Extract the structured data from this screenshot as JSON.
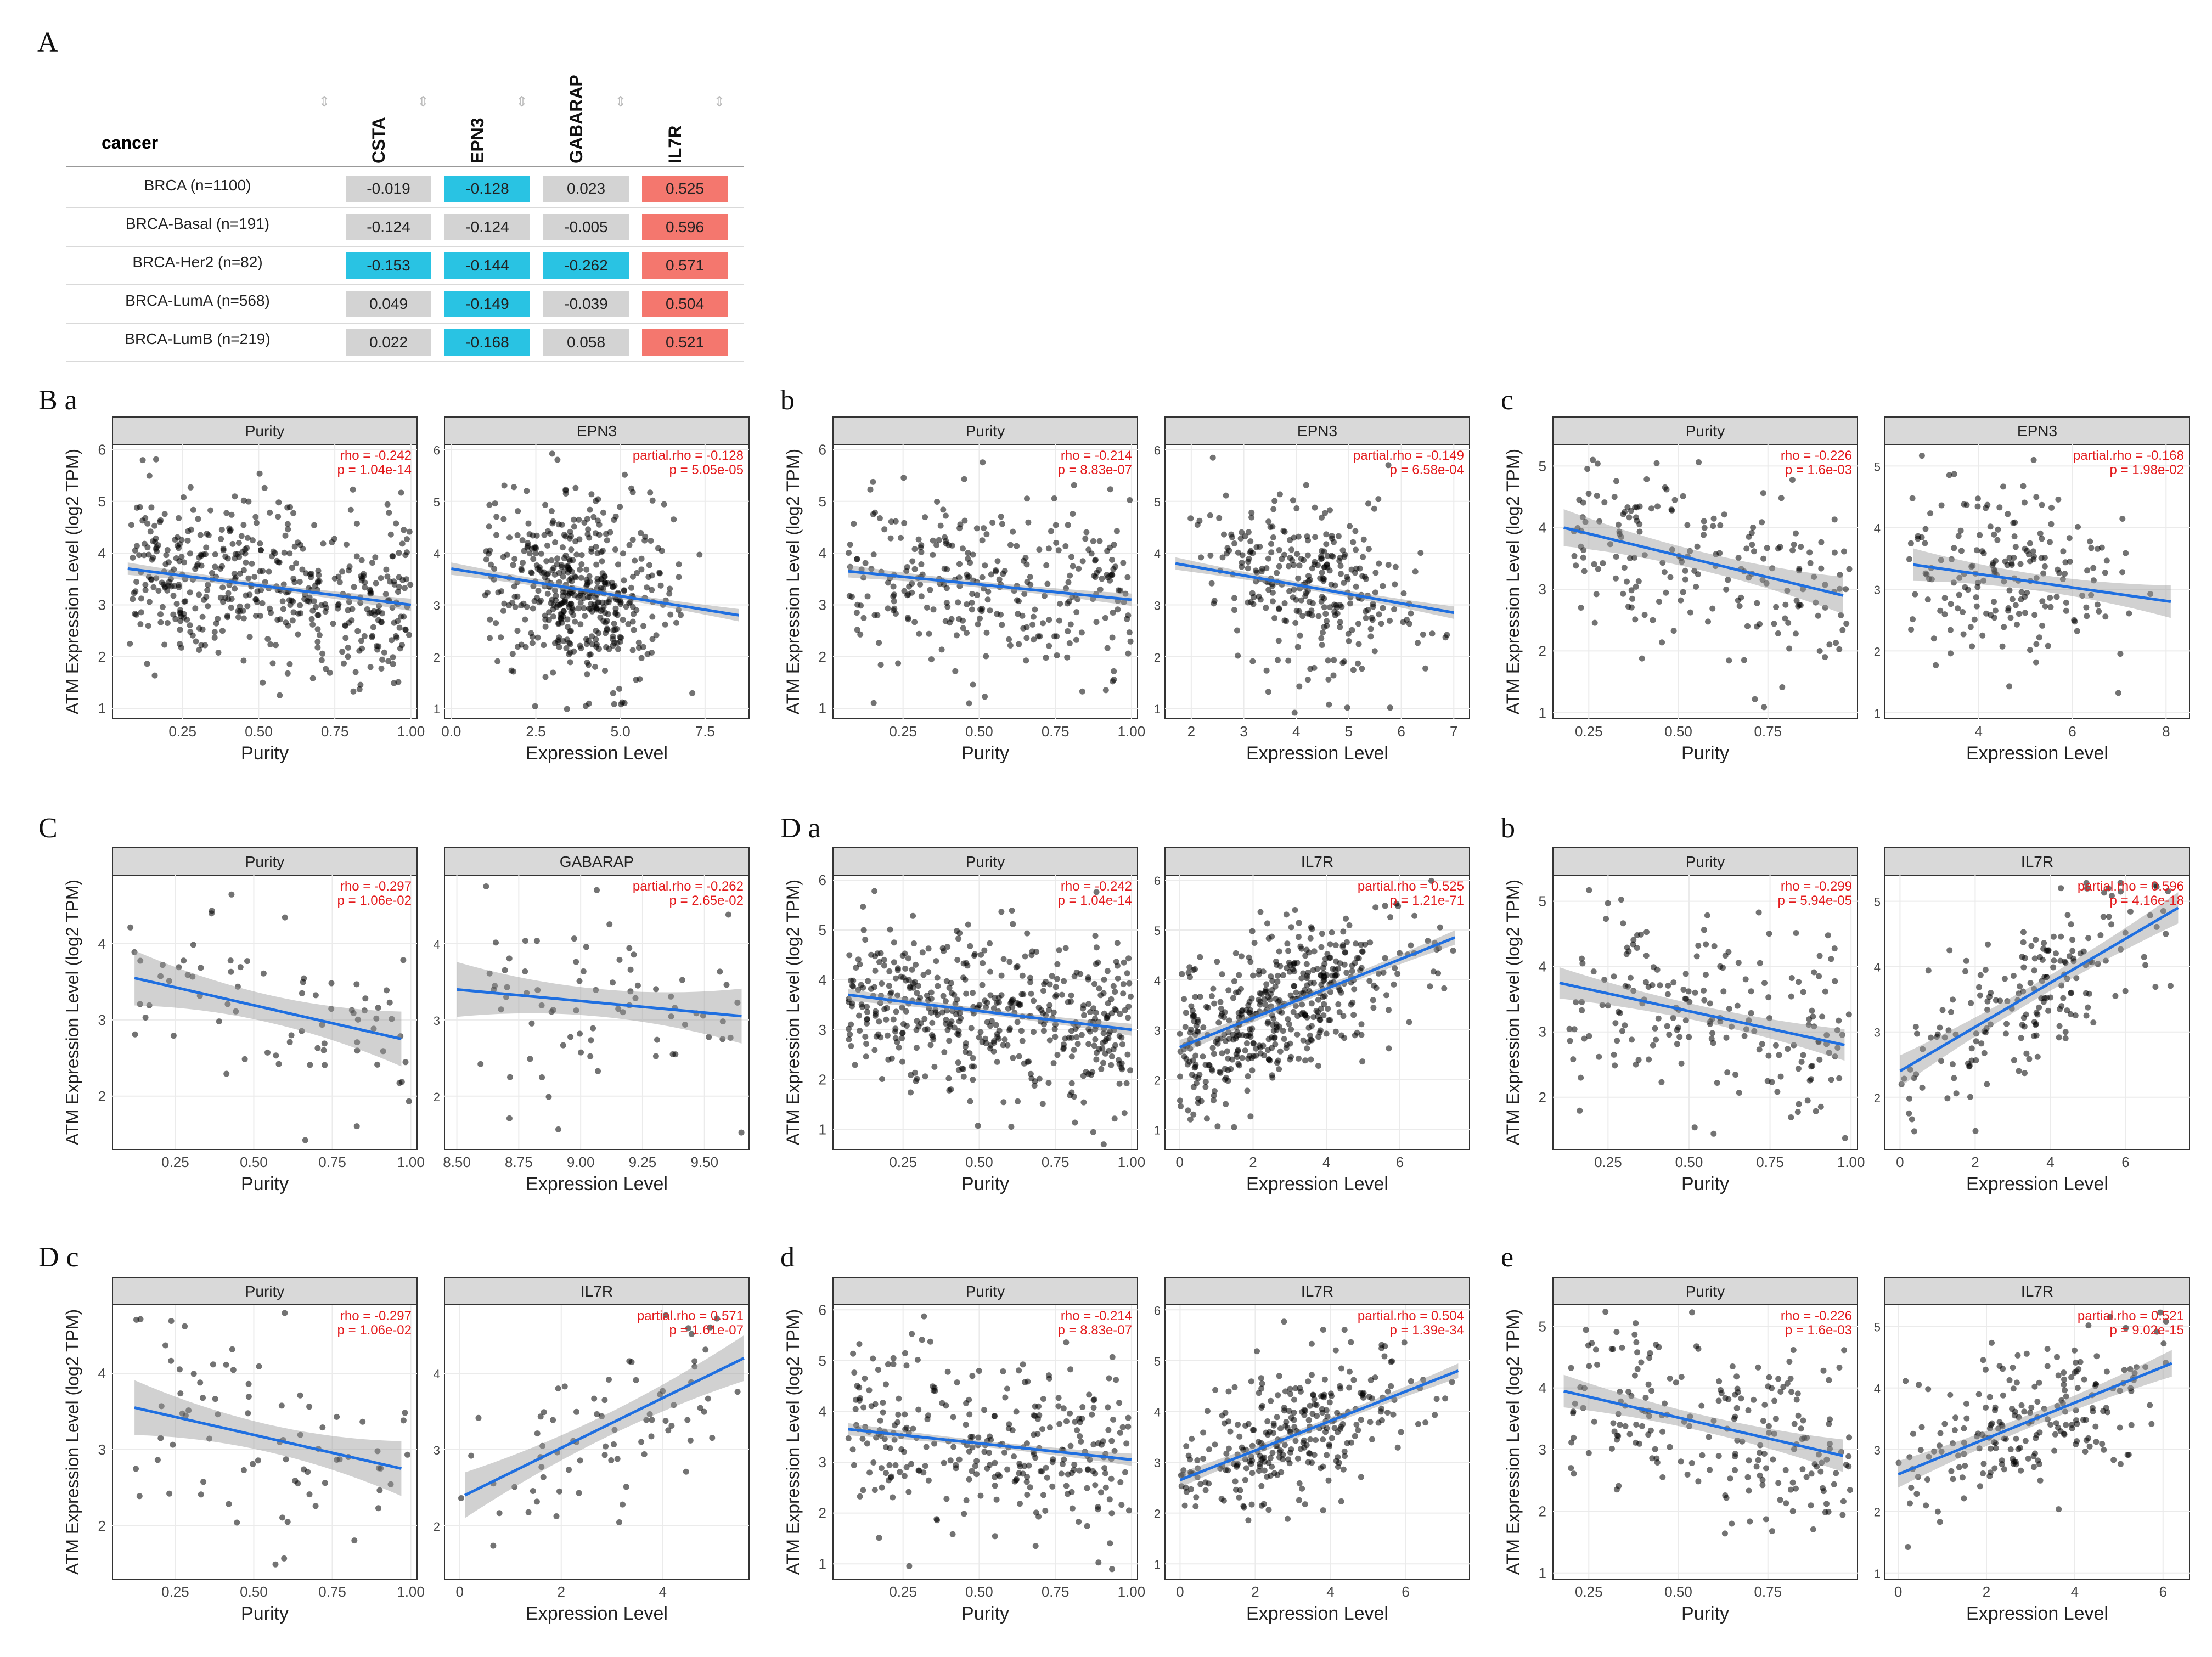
{
  "panel_labels": [
    "A",
    "B a",
    "b",
    "c",
    "C",
    "D a",
    "b",
    "D c",
    "d",
    "e"
  ],
  "heatmap": {
    "row_header": "cancer",
    "columns": [
      "CSTA",
      "EPN3",
      "GABARAP",
      "IL7R"
    ],
    "rows": [
      {
        "label": "BRCA (n=1100)",
        "values": [
          "-0.019",
          "-0.128",
          "0.023",
          "0.525"
        ]
      },
      {
        "label": "BRCA-Basal (n=191)",
        "values": [
          "-0.124",
          "-0.124",
          "-0.005",
          "0.596"
        ]
      },
      {
        "label": "BRCA-Her2 (n=82)",
        "values": [
          "-0.153",
          "-0.144",
          "-0.262",
          "0.571"
        ]
      },
      {
        "label": "BRCA-LumA (n=568)",
        "values": [
          "0.049",
          "-0.149",
          "-0.039",
          "0.504"
        ]
      },
      {
        "label": "BRCA-LumB (n=219)",
        "values": [
          "0.022",
          "-0.168",
          "0.058",
          "0.521"
        ]
      }
    ],
    "colors": {
      "neutral": "#d3d3d3",
      "negative": "#29c3e3",
      "positive": "#f4776e"
    }
  },
  "chart_data": [
    {
      "id": "Ba",
      "type": "scatter",
      "ylabel": "ATM Expression Level (log2 TPM)",
      "ylim": [
        0.8,
        6.1
      ],
      "yticks": [
        1,
        2,
        3,
        4,
        5,
        6
      ],
      "n": 480,
      "left": {
        "title": "Purity",
        "xlabel": "Purity",
        "xlim": [
          0.02,
          1.02
        ],
        "xticks": [
          "0.25",
          "0.50",
          "0.75",
          "1.00"
        ],
        "xtick_values": [
          0.25,
          0.5,
          0.75,
          1.0
        ],
        "line": [
          [
            0.07,
            3.7
          ],
          [
            1.0,
            3.0
          ]
        ],
        "band": 0.1,
        "spread": 0.8,
        "stat1": "rho = -0.242",
        "stat2": "p = 1.04e-14"
      },
      "right": {
        "title": "EPN3",
        "xlabel": "Expression Level",
        "xlim": [
          -0.2,
          8.8
        ],
        "xticks": [
          "0.0",
          "2.5",
          "5.0",
          "7.5"
        ],
        "xtick_values": [
          0,
          2.5,
          5,
          7.5
        ],
        "line": [
          [
            0,
            3.7
          ],
          [
            8.5,
            2.8
          ]
        ],
        "band": 0.1,
        "spread": 0.8,
        "xdist": [
          1.0,
          8.5,
          3.8,
          1.3
        ],
        "stat1": "partial.rho = -0.128",
        "stat2": "p = 5.05e-05"
      }
    },
    {
      "id": "Bb",
      "type": "scatter",
      "ylabel": "ATM Expression Level (log2 TPM)",
      "ylim": [
        0.8,
        6.1
      ],
      "yticks": [
        1,
        2,
        3,
        4,
        5,
        6
      ],
      "n": 300,
      "left": {
        "title": "Purity",
        "xlabel": "Purity",
        "xlim": [
          0.02,
          1.02
        ],
        "xticks": [
          "0.25",
          "0.50",
          "0.75",
          "1.00"
        ],
        "xtick_values": [
          0.25,
          0.5,
          0.75,
          1.0
        ],
        "line": [
          [
            0.07,
            3.65
          ],
          [
            1.0,
            3.1
          ]
        ],
        "band": 0.1,
        "spread": 0.85,
        "stat1": "rho = -0.214",
        "stat2": "p = 8.83e-07"
      },
      "right": {
        "title": "EPN3",
        "xlabel": "Expression Level",
        "xlim": [
          1.5,
          7.3
        ],
        "xticks": [
          "2",
          "3",
          "4",
          "5",
          "6",
          "7"
        ],
        "xtick_values": [
          2,
          3,
          4,
          5,
          6,
          7
        ],
        "line": [
          [
            1.7,
            3.8
          ],
          [
            7.0,
            2.85
          ]
        ],
        "band": 0.1,
        "spread": 0.85,
        "xdist": [
          1.8,
          7.0,
          4.2,
          1.0
        ],
        "stat1": "partial.rho = -0.149",
        "stat2": "p = 6.58e-04"
      }
    },
    {
      "id": "Bc",
      "type": "scatter",
      "ylabel": "ATM Expression Level (log2 TPM)",
      "ylim": [
        0.9,
        5.35
      ],
      "yticks": [
        1,
        2,
        3,
        4,
        5
      ],
      "n": 190,
      "left": {
        "title": "Purity",
        "xlabel": "Purity",
        "xlim": [
          0.15,
          1.0
        ],
        "xticks": [
          "0.25",
          "0.50",
          "0.75"
        ],
        "xtick_values": [
          0.25,
          0.5,
          0.75
        ],
        "line": [
          [
            0.18,
            4.0
          ],
          [
            0.96,
            2.9
          ]
        ],
        "band": 0.25,
        "spread": 0.7,
        "stat1": "rho = -0.226",
        "stat2": "p = 1.6e-03"
      },
      "right": {
        "title": "EPN3",
        "xlabel": "Expression Level",
        "xlim": [
          2.0,
          8.5
        ],
        "xticks": [
          "4",
          "6",
          "8"
        ],
        "xtick_values": [
          4,
          6,
          8
        ],
        "line": [
          [
            2.6,
            3.4
          ],
          [
            8.1,
            2.8
          ]
        ],
        "band": 0.22,
        "spread": 0.7,
        "xdist": [
          2.5,
          8.0,
          4.6,
          1.2
        ],
        "stat1": "partial.rho = -0.168",
        "stat2": "p = 1.98e-02"
      }
    },
    {
      "id": "C",
      "type": "scatter",
      "ylabel": "ATM Expression Level (log2 TPM)",
      "ylim": [
        1.3,
        4.9
      ],
      "yticks": [
        2,
        3,
        4
      ],
      "n": 75,
      "left": {
        "title": "Purity",
        "xlabel": "Purity",
        "xlim": [
          0.05,
          1.02
        ],
        "xticks": [
          "0.25",
          "0.50",
          "0.75",
          "1.00"
        ],
        "xtick_values": [
          0.25,
          0.5,
          0.75,
          1.0
        ],
        "line": [
          [
            0.12,
            3.55
          ],
          [
            0.97,
            2.75
          ]
        ],
        "band": 0.3,
        "spread": 0.65,
        "stat1": "rho = -0.297",
        "stat2": "p = 1.06e-02"
      },
      "right": {
        "title": "GABARAP",
        "xlabel": "Expression Level",
        "xlim": [
          8.45,
          9.68
        ],
        "xticks": [
          "8.50",
          "8.75",
          "9.00",
          "9.25",
          "9.50"
        ],
        "xtick_values": [
          8.5,
          8.75,
          9.0,
          9.25,
          9.5
        ],
        "line": [
          [
            8.5,
            3.4
          ],
          [
            9.65,
            3.05
          ]
        ],
        "band": 0.3,
        "spread": 0.65,
        "xdist": [
          8.5,
          9.65,
          9.1,
          0.3
        ],
        "stat1": "partial.rho = -0.262",
        "stat2": "p = 2.65e-02"
      }
    },
    {
      "id": "Da",
      "type": "scatter",
      "ylabel": "ATM Expression Level (log2 TPM)",
      "ylim": [
        0.6,
        6.1
      ],
      "yticks": [
        1,
        2,
        3,
        4,
        5,
        6
      ],
      "n": 480,
      "left": {
        "title": "Purity",
        "xlabel": "Purity",
        "xlim": [
          0.02,
          1.02
        ],
        "xticks": [
          "0.25",
          "0.50",
          "0.75",
          "1.00"
        ],
        "xtick_values": [
          0.25,
          0.5,
          0.75,
          1.0
        ],
        "line": [
          [
            0.07,
            3.7
          ],
          [
            1.0,
            3.0
          ]
        ],
        "band": 0.1,
        "spread": 0.8,
        "stat1": "rho = -0.242",
        "stat2": "p = 1.04e-14"
      },
      "right": {
        "title": "IL7R",
        "xlabel": "Expression Level",
        "xlim": [
          -0.4,
          7.9
        ],
        "xticks": [
          "0",
          "2",
          "4",
          "6"
        ],
        "xtick_values": [
          0,
          2,
          4,
          6
        ],
        "line": [
          [
            0,
            2.65
          ],
          [
            7.5,
            4.85
          ]
        ],
        "band": 0.12,
        "spread": 0.7,
        "xdist": [
          0,
          7.5,
          2.8,
          1.7
        ],
        "stat1": "partial.rho = 0.525",
        "stat2": "p = 1.21e-71"
      }
    },
    {
      "id": "Db",
      "type": "scatter",
      "ylabel": "ATM Expression Level (log2 TPM)",
      "ylim": [
        1.2,
        5.4
      ],
      "yticks": [
        2,
        3,
        4,
        5
      ],
      "n": 190,
      "left": {
        "title": "Purity",
        "xlabel": "Purity",
        "xlim": [
          0.08,
          1.02
        ],
        "xticks": [
          "0.25",
          "0.50",
          "0.75",
          "1.00"
        ],
        "xtick_values": [
          0.25,
          0.5,
          0.75,
          1.0
        ],
        "line": [
          [
            0.1,
            3.75
          ],
          [
            0.98,
            2.8
          ]
        ],
        "band": 0.2,
        "spread": 0.75,
        "stat1": "rho = -0.299",
        "stat2": "p = 5.94e-05"
      },
      "right": {
        "title": "IL7R",
        "xlabel": "Expression Level",
        "xlim": [
          -0.4,
          7.7
        ],
        "xticks": [
          "0",
          "2",
          "4",
          "6"
        ],
        "xtick_values": [
          0,
          2,
          4,
          6
        ],
        "line": [
          [
            0,
            2.4
          ],
          [
            7.4,
            4.9
          ]
        ],
        "band": 0.2,
        "spread": 0.6,
        "xdist": [
          0,
          7.3,
          3.2,
          1.7
        ],
        "stat1": "partial.rho = 0.596",
        "stat2": "p = 4.16e-18"
      }
    },
    {
      "id": "Dc",
      "type": "scatter",
      "ylabel": "ATM Expression Level (log2 TPM)",
      "ylim": [
        1.3,
        4.9
      ],
      "yticks": [
        2,
        3,
        4
      ],
      "n": 75,
      "left": {
        "title": "Purity",
        "xlabel": "Purity",
        "xlim": [
          0.05,
          1.02
        ],
        "xticks": [
          "0.25",
          "0.50",
          "0.75",
          "1.00"
        ],
        "xtick_values": [
          0.25,
          0.5,
          0.75,
          1.0
        ],
        "line": [
          [
            0.12,
            3.55
          ],
          [
            0.97,
            2.75
          ]
        ],
        "band": 0.3,
        "spread": 0.65,
        "stat1": "rho = -0.297",
        "stat2": "p = 1.06e-02"
      },
      "right": {
        "title": "IL7R",
        "xlabel": "Expression Level",
        "xlim": [
          -0.3,
          5.7
        ],
        "xticks": [
          "0",
          "2",
          "4"
        ],
        "xtick_values": [
          0,
          2,
          4
        ],
        "line": [
          [
            0.1,
            2.4
          ],
          [
            5.6,
            4.2
          ]
        ],
        "band": 0.25,
        "spread": 0.5,
        "xdist": [
          0,
          5.5,
          2.8,
          1.4
        ],
        "stat1": "partial.rho = 0.571",
        "stat2": "p = 1.61e-07"
      }
    },
    {
      "id": "Dd",
      "type": "scatter",
      "ylabel": "ATM Expression Level (log2 TPM)",
      "ylim": [
        0.7,
        6.1
      ],
      "yticks": [
        1,
        2,
        3,
        4,
        5,
        6
      ],
      "n": 300,
      "left": {
        "title": "Purity",
        "xlabel": "Purity",
        "xlim": [
          0.02,
          1.02
        ],
        "xticks": [
          "0.25",
          "0.50",
          "0.75",
          "1.00"
        ],
        "xtick_values": [
          0.25,
          0.5,
          0.75,
          1.0
        ],
        "line": [
          [
            0.07,
            3.65
          ],
          [
            1.0,
            3.05
          ]
        ],
        "band": 0.1,
        "spread": 0.85,
        "stat1": "rho = -0.214",
        "stat2": "p = 8.83e-07"
      },
      "right": {
        "title": "IL7R",
        "xlabel": "Expression Level",
        "xlim": [
          -0.4,
          7.7
        ],
        "xticks": [
          "0",
          "2",
          "4",
          "6"
        ],
        "xtick_values": [
          0,
          2,
          4,
          6
        ],
        "line": [
          [
            0,
            2.65
          ],
          [
            7.4,
            4.8
          ]
        ],
        "band": 0.12,
        "spread": 0.65,
        "xdist": [
          0,
          7.3,
          2.9,
          1.6
        ],
        "stat1": "partial.rho = 0.504",
        "stat2": "p = 1.39e-34"
      }
    },
    {
      "id": "De",
      "type": "scatter",
      "ylabel": "ATM Expression Level (log2 TPM)",
      "ylim": [
        0.9,
        5.35
      ],
      "yticks": [
        1,
        2,
        3,
        4,
        5
      ],
      "n": 210,
      "left": {
        "title": "Purity",
        "xlabel": "Purity",
        "xlim": [
          0.15,
          1.0
        ],
        "xticks": [
          "0.25",
          "0.50",
          "0.75"
        ],
        "xtick_values": [
          0.25,
          0.5,
          0.75
        ],
        "line": [
          [
            0.18,
            3.95
          ],
          [
            0.96,
            2.9
          ]
        ],
        "band": 0.22,
        "spread": 0.7,
        "stat1": "rho = -0.226",
        "stat2": "p = 1.6e-03"
      },
      "right": {
        "title": "IL7R",
        "xlabel": "Expression Level",
        "xlim": [
          -0.3,
          6.6
        ],
        "xticks": [
          "0",
          "2",
          "4",
          "6"
        ],
        "xtick_values": [
          0,
          2,
          4,
          6
        ],
        "line": [
          [
            0,
            2.6
          ],
          [
            6.2,
            4.4
          ]
        ],
        "band": 0.18,
        "spread": 0.6,
        "xdist": [
          0,
          6.2,
          3.0,
          1.5
        ],
        "stat1": "partial.rho = 0.521",
        "stat2": "p = 9.02e-15"
      }
    }
  ]
}
